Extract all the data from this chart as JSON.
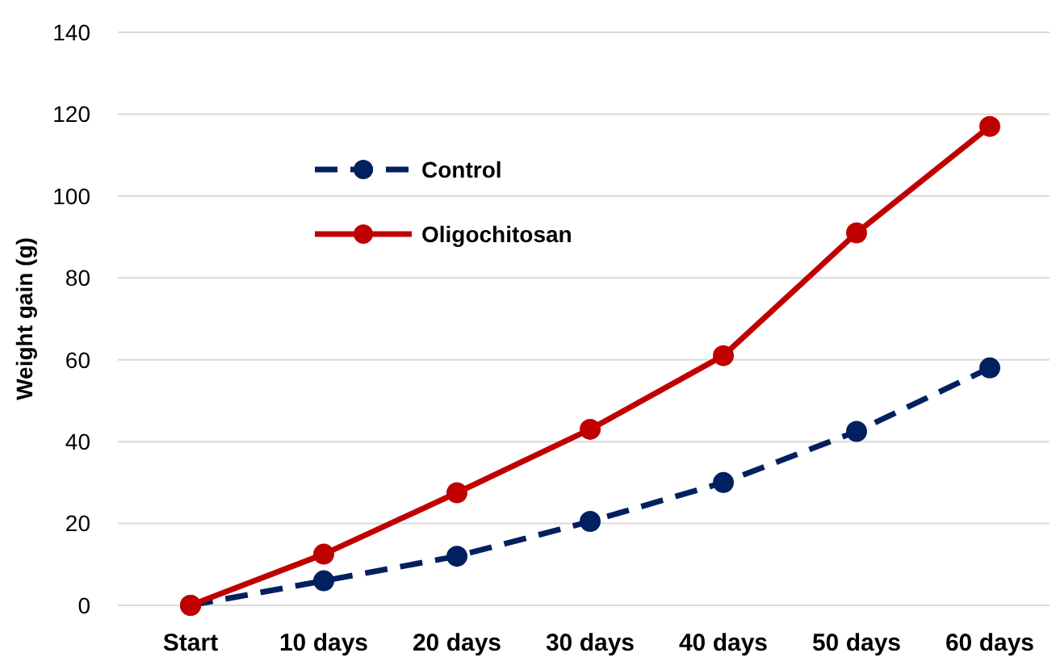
{
  "chart_data": {
    "type": "line",
    "ylabel": "Weight gain (g)",
    "categories": [
      "Start",
      "10 days",
      "20 days",
      "30 days",
      "40 days",
      "50 days",
      "60 days"
    ],
    "series": [
      {
        "name": "Control",
        "color": "#002060",
        "values": [
          0,
          6,
          12,
          20.5,
          30,
          42.5,
          58
        ],
        "line_style": "dashed"
      },
      {
        "name": "Oligochitosan",
        "color": "#c00000",
        "values": [
          0,
          12.5,
          27.5,
          43,
          61,
          91,
          117
        ],
        "line_style": "solid"
      }
    ],
    "ylim": [
      0,
      140
    ],
    "yticks": [
      0,
      20,
      40,
      60,
      80,
      100,
      120,
      140
    ],
    "grid": "y",
    "legend": "top left",
    "marker": "circle"
  }
}
